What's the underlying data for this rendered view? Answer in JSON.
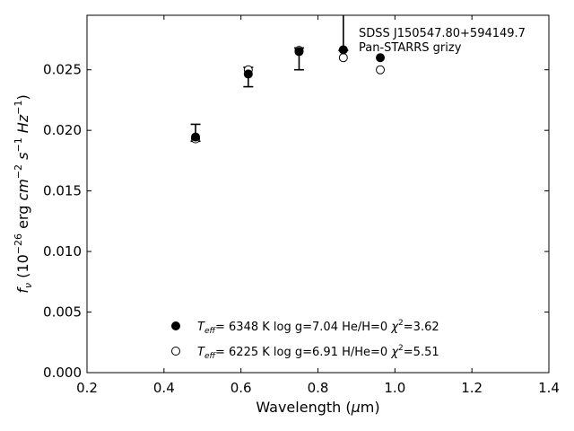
{
  "chart_data": {
    "type": "scatter",
    "xlabel_prefix": "Wavelength (",
    "xlabel_mu": "μ",
    "xlabel_suffix": "m)",
    "xlim": [
      0.2,
      1.4
    ],
    "ylim": [
      0.0,
      0.0295
    ],
    "xticks": [
      "0.2",
      "0.4",
      "0.6",
      "0.8",
      "1.0",
      "1.2",
      "1.4"
    ],
    "yticks": [
      "0.000",
      "0.005",
      "0.010",
      "0.015",
      "0.020",
      "0.025"
    ],
    "annotations": [
      "SDSS J150547.80+594149.7",
      "Pan-STARRS grizy"
    ],
    "observed": [
      {
        "x": 0.482,
        "y": 0.01945,
        "ylow": 0.0191,
        "yhigh": 0.0205
      },
      {
        "x": 0.619,
        "y": 0.02465,
        "ylow": 0.0236,
        "yhigh": 0.0252
      },
      {
        "x": 0.751,
        "y": 0.0265,
        "ylow": 0.025,
        "yhigh": 0.0268
      },
      {
        "x": 0.866,
        "y": 0.02665,
        "ylow": 0.0266,
        "yhigh": 0.03
      },
      {
        "x": 0.962,
        "y": 0.026
      }
    ],
    "model": [
      {
        "x": 0.482,
        "y": 0.0193
      },
      {
        "x": 0.619,
        "y": 0.025
      },
      {
        "x": 0.751,
        "y": 0.0266
      },
      {
        "x": 0.866,
        "y": 0.026
      },
      {
        "x": 0.962,
        "y": 0.025
      }
    ],
    "legend": [
      {
        "marker": "filled",
        "t_eff": "6348 K",
        "logg": "log g=7.04",
        "comp": "He/H=0",
        "chi2": "=3.62"
      },
      {
        "marker": "open",
        "t_eff": "6225 K",
        "logg": "log g=6.91",
        "comp": "H/He=0",
        "chi2": "=5.51"
      }
    ]
  }
}
